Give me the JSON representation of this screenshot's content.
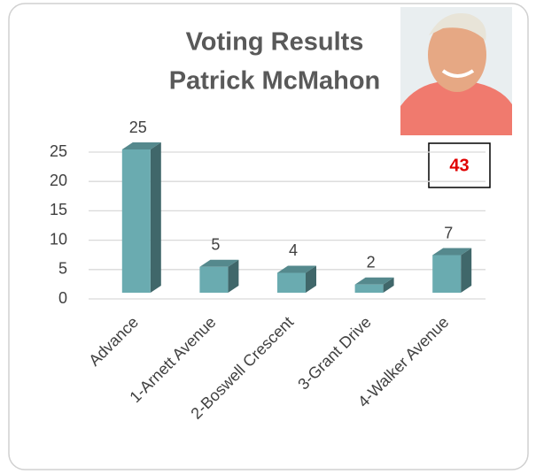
{
  "chart_data": {
    "type": "bar",
    "title": [
      "Voting Results",
      "Patrick McMahon"
    ],
    "categories": [
      "Advance",
      "1-Arnett Avenue",
      "2-Boswell Crescent",
      "3-Grant Drive",
      "4-Walker Avenue"
    ],
    "values": [
      25,
      5,
      4,
      2,
      7
    ],
    "color": "#6aabb0",
    "ylim": [
      0,
      25
    ],
    "yticks": [
      0,
      5,
      10,
      15,
      20,
      25
    ],
    "grid": true,
    "total": 43
  }
}
